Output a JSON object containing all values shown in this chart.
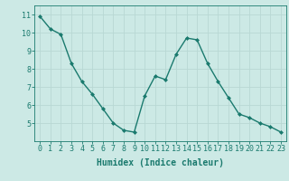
{
  "x": [
    0,
    1,
    2,
    3,
    4,
    5,
    6,
    7,
    8,
    9,
    10,
    11,
    12,
    13,
    14,
    15,
    16,
    17,
    18,
    19,
    20,
    21,
    22,
    23
  ],
  "y": [
    10.9,
    10.2,
    9.9,
    8.3,
    7.3,
    6.6,
    5.8,
    5.0,
    4.6,
    4.5,
    6.5,
    7.6,
    7.4,
    8.8,
    9.7,
    9.6,
    8.3,
    7.3,
    6.4,
    5.5,
    5.3,
    5.0,
    4.8,
    4.5
  ],
  "line_color": "#1a7a6e",
  "marker": "D",
  "marker_size": 2,
  "bg_color": "#cce9e5",
  "grid_color": "#b8d8d4",
  "xlabel": "Humidex (Indice chaleur)",
  "xlabel_fontsize": 7,
  "tick_fontsize": 6,
  "ylim": [
    4.0,
    11.5
  ],
  "xlim": [
    -0.5,
    23.5
  ],
  "yticks": [
    5,
    6,
    7,
    8,
    9,
    10,
    11
  ],
  "xticks": [
    0,
    1,
    2,
    3,
    4,
    5,
    6,
    7,
    8,
    9,
    10,
    11,
    12,
    13,
    14,
    15,
    16,
    17,
    18,
    19,
    20,
    21,
    22,
    23
  ]
}
